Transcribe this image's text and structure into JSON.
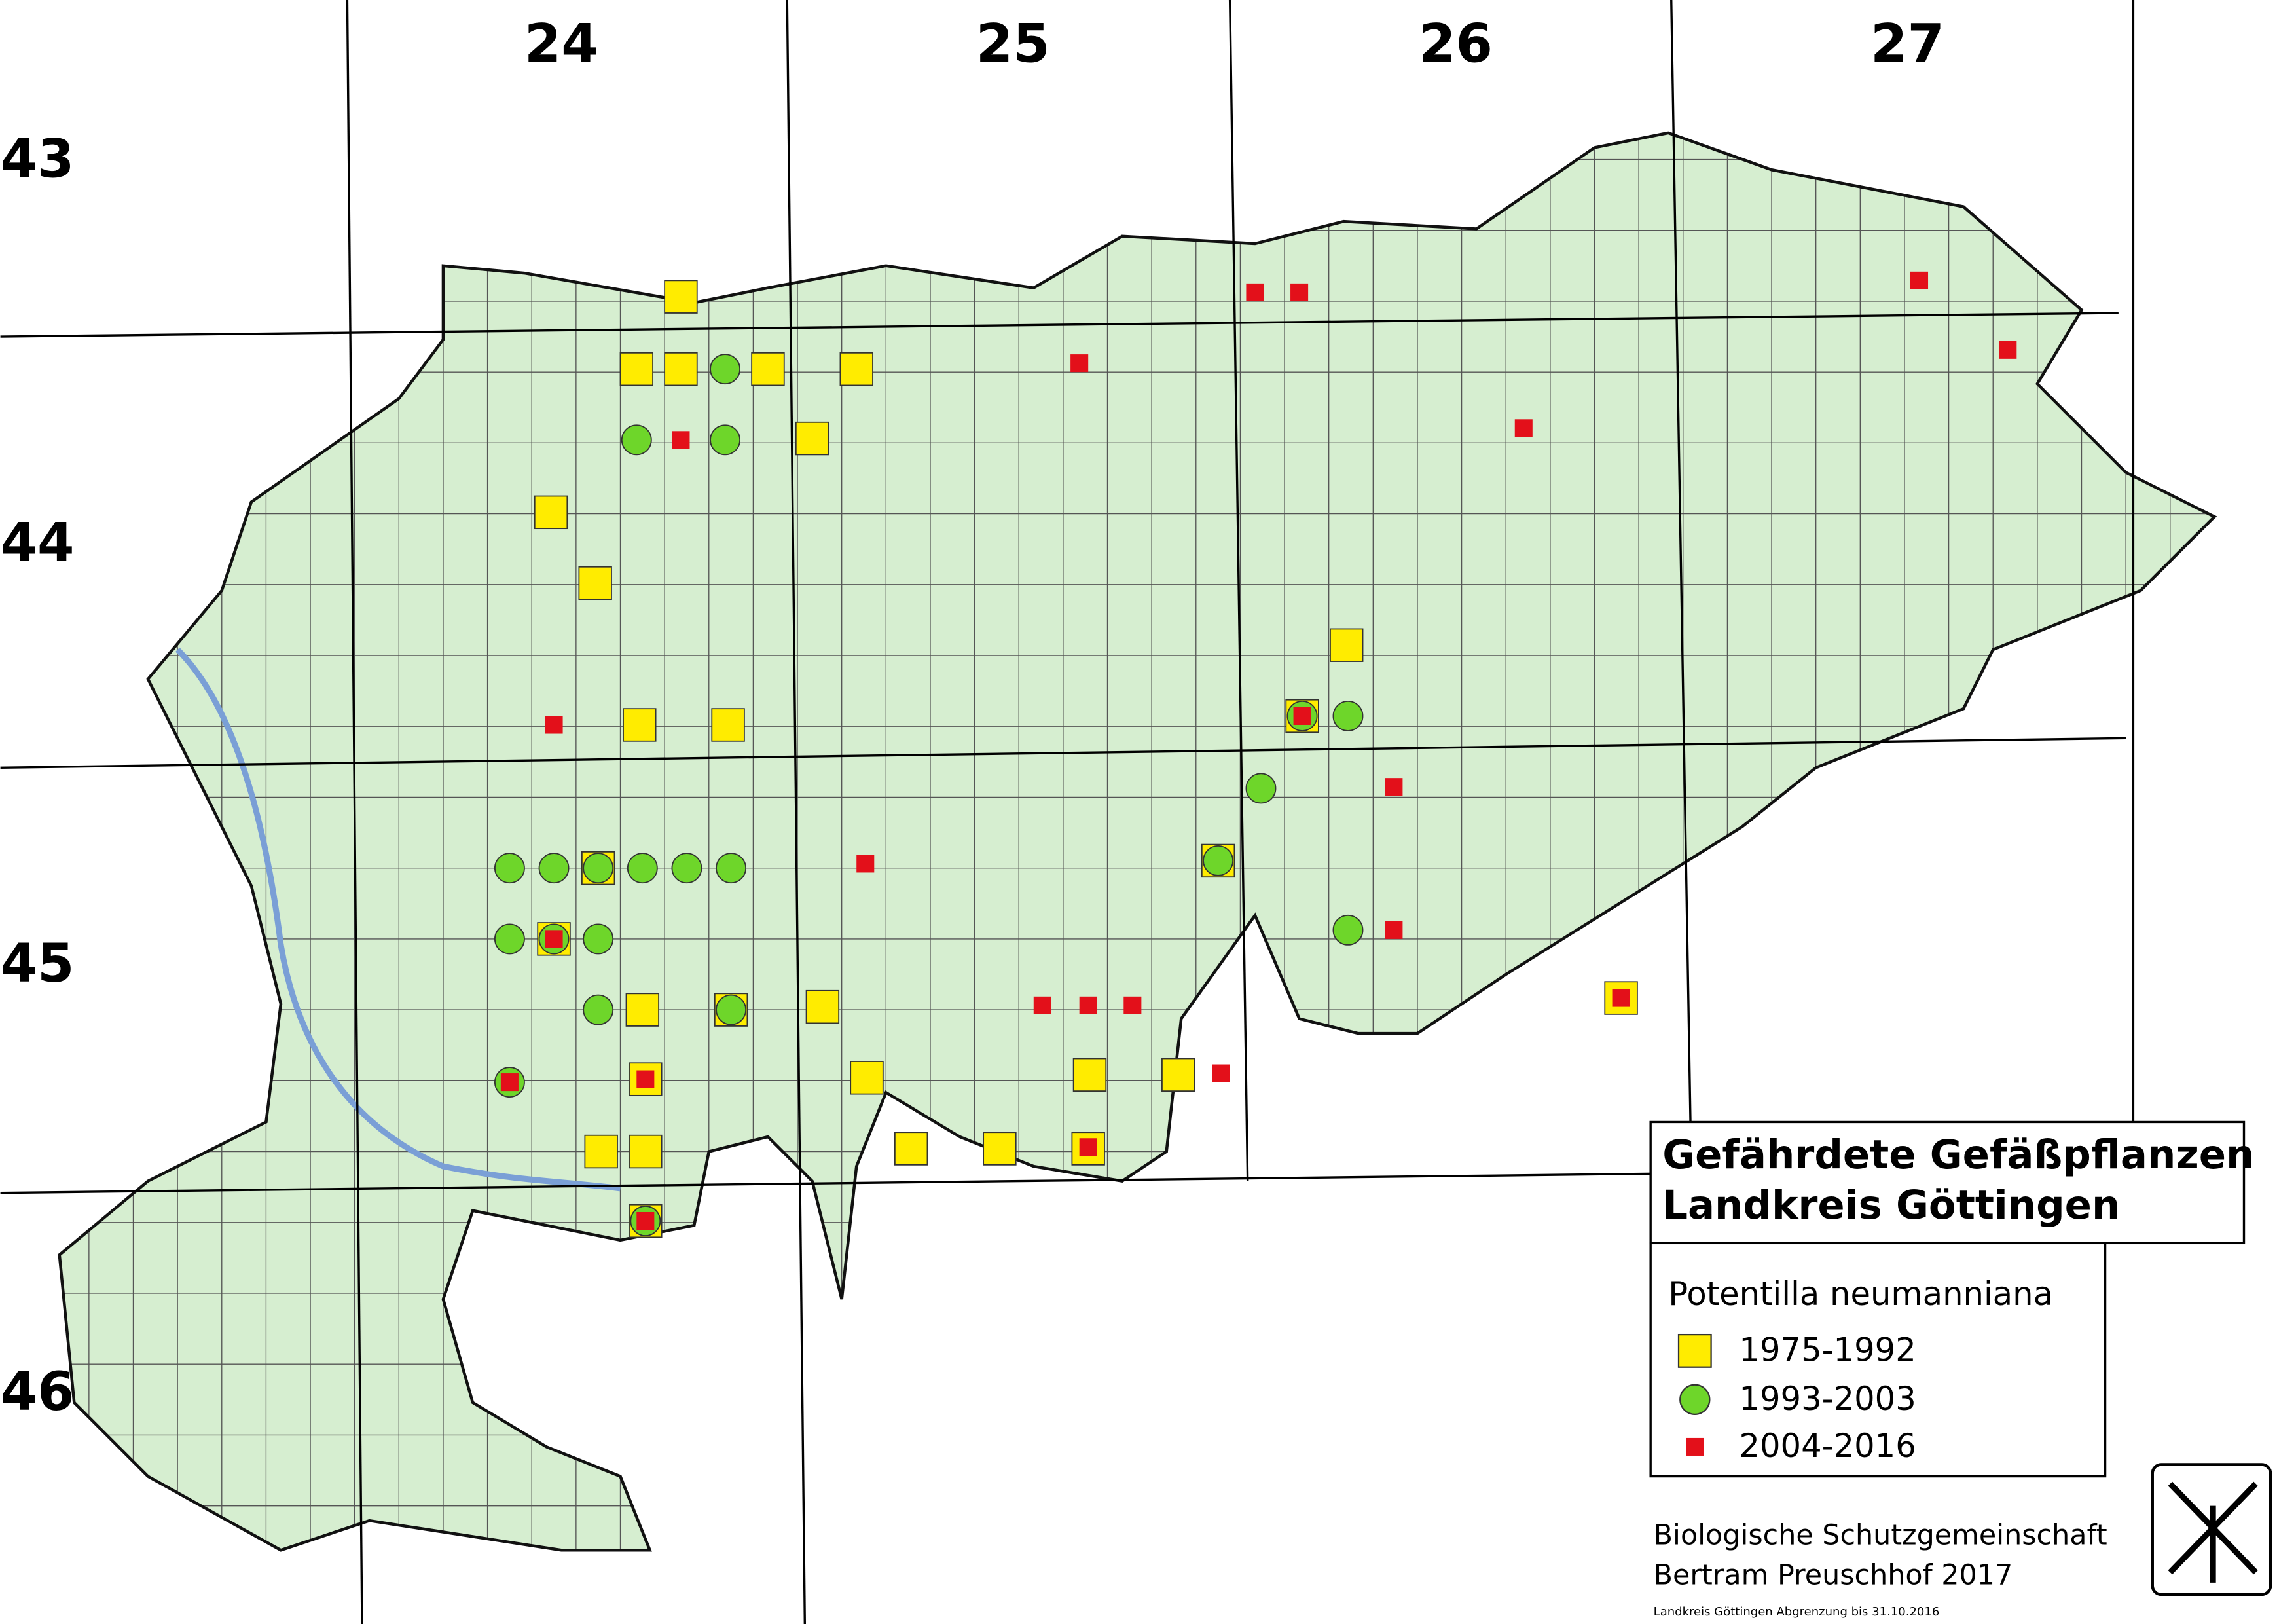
{
  "map": {
    "column_labels": [
      "24",
      "25",
      "26",
      "27"
    ],
    "row_labels": [
      "43",
      "44",
      "45",
      "46"
    ],
    "legend": {
      "title": [
        "Gefährdete Gefäßpflanzen",
        "Landkreis Göttingen"
      ],
      "species": "Potentilla neumanniana",
      "entries": [
        "1975-1992",
        "1993-2003",
        "2004-2016"
      ]
    },
    "credits": [
      "Biologische Schutzgemeinschaft",
      "Bertram Preuschhof 2017"
    ],
    "note": "Landkreis Göttingen Abgrenzung bis 31.10.2016"
  }
}
